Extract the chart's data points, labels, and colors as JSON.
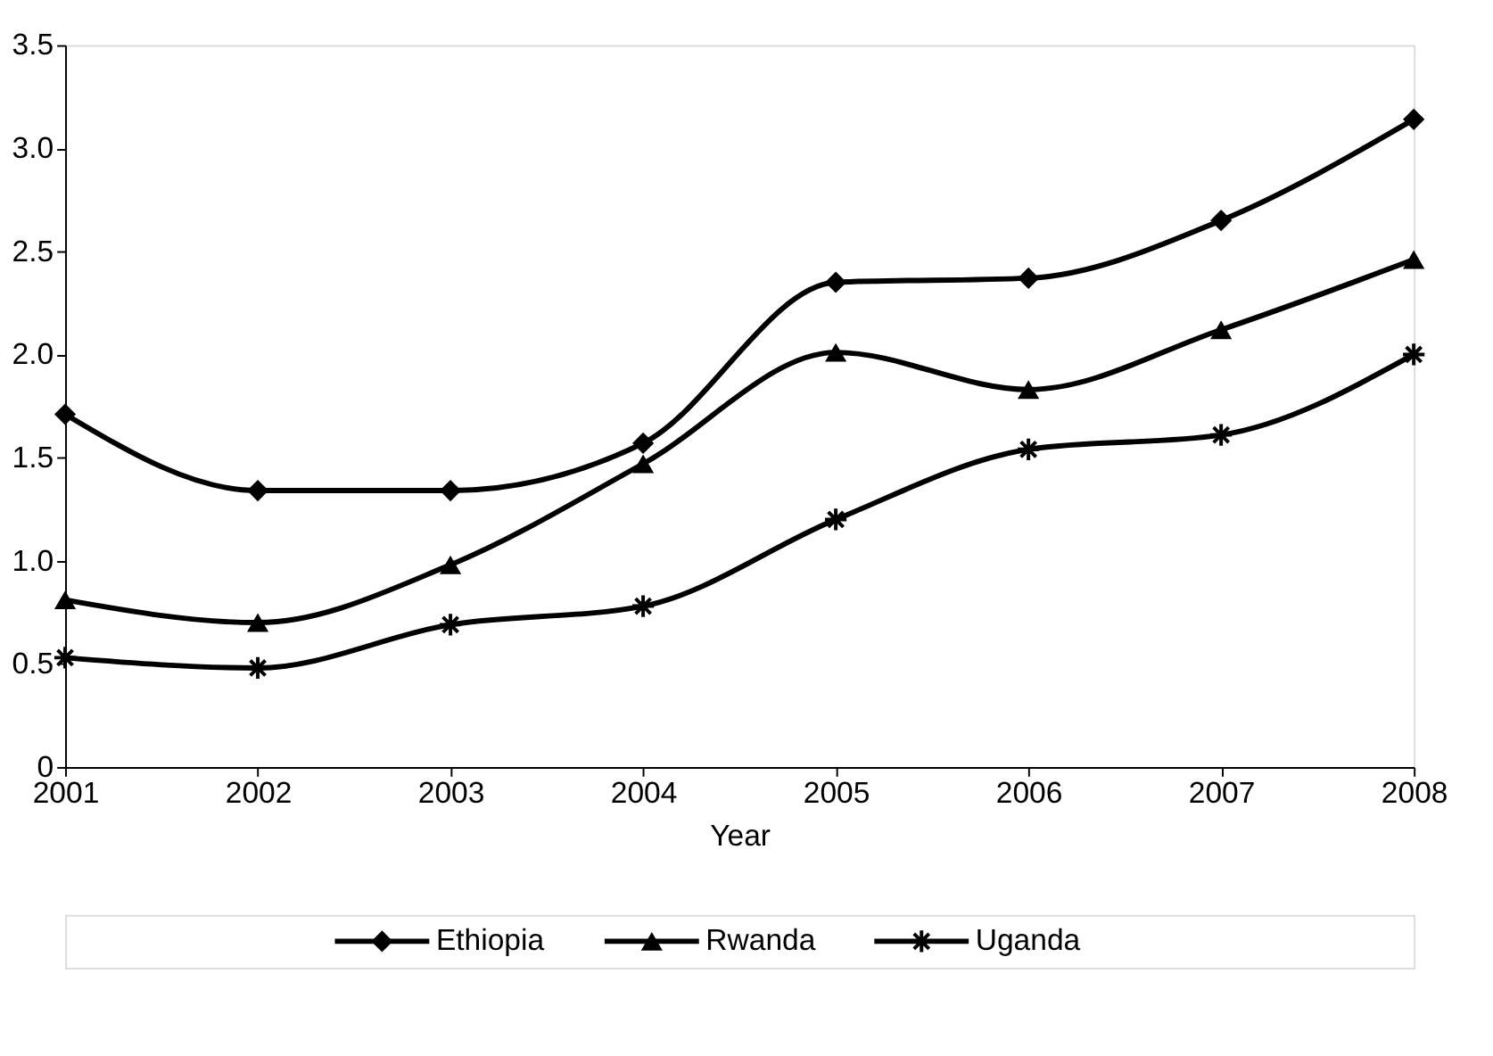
{
  "chart_data": {
    "type": "line",
    "xlabel": "Year",
    "x": [
      2001,
      2002,
      2003,
      2004,
      2005,
      2006,
      2007,
      2008
    ],
    "xlim": [
      2001,
      2008
    ],
    "xticks": [
      2001,
      2002,
      2003,
      2004,
      2005,
      2006,
      2007,
      2008
    ],
    "ylim": [
      0,
      3.5
    ],
    "yticks": [
      0,
      {
        "value": 0.5,
        "label": "0.5"
      },
      {
        "value": 1,
        "label": "1.0"
      },
      {
        "value": 1.5,
        "label": "1.5"
      },
      {
        "value": 2,
        "label": "2.0"
      },
      {
        "value": 2.5,
        "label": "2.5"
      },
      {
        "value": 3,
        "label": "3.0"
      },
      {
        "value": 3.5,
        "label": "3.5"
      }
    ],
    "grid": false,
    "legend": "bottom",
    "line_style": "solid",
    "series": [
      {
        "name": "Ethiopia",
        "color": "#000000",
        "marker": "diamond",
        "values": [
          1.71,
          1.34,
          1.34,
          1.57,
          2.35,
          2.37,
          2.65,
          3.14
        ]
      },
      {
        "name": "Rwanda",
        "color": "#000000",
        "marker": "triangle",
        "values": [
          0.81,
          0.7,
          0.98,
          1.47,
          2.01,
          1.83,
          2.12,
          2.46
        ]
      },
      {
        "name": "Uganda",
        "color": "#000000",
        "marker": "cross",
        "values": [
          0.53,
          0.48,
          0.69,
          0.78,
          1.2,
          1.54,
          1.61,
          2.0
        ]
      }
    ]
  }
}
